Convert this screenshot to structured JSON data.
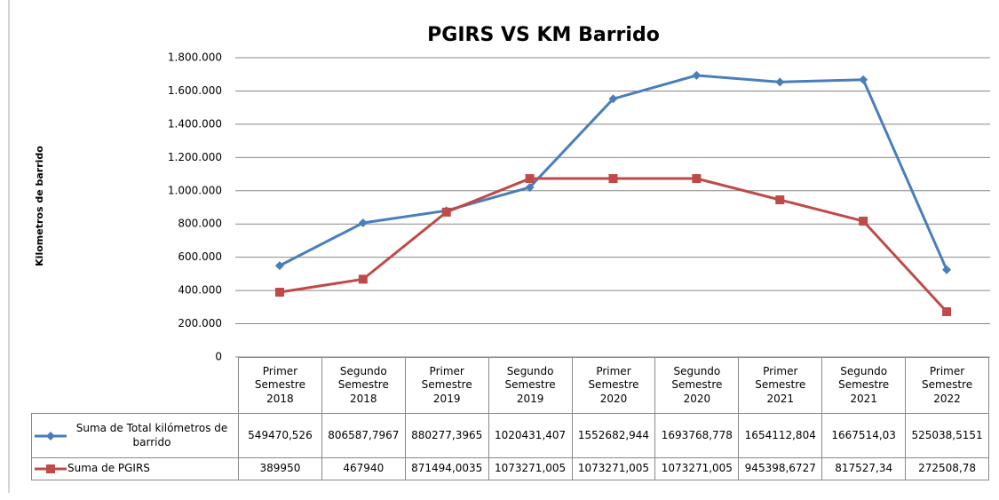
{
  "chart_data": {
    "type": "line",
    "title": "PGIRS VS KM Barrido",
    "ylabel": "Kilometros de barrido",
    "categories": [
      "Primer Semestre 2018",
      "Segundo Semestre 2018",
      "Primer Semestre 2019",
      "Segundo Semestre 2019",
      "Primer Semestre 2020",
      "Segundo Semestre 2020",
      "Primer Semestre 2021",
      "Segundo Semestre 2021",
      "Primer Semestre 2022"
    ],
    "series": [
      {
        "name": "Suma de Total kilómetros de barrido",
        "color": "#4a7ebb",
        "marker": "diamond",
        "values": [
          549470.526,
          806587.7967,
          880277.3965,
          1020431.407,
          1552682.944,
          1693768.778,
          1654112.804,
          1667514.03,
          525038.5151
        ],
        "value_labels": [
          "549470,526",
          "806587,7967",
          "880277,3965",
          "1020431,407",
          "1552682,944",
          "1693768,778",
          "1654112,804",
          "1667514,03",
          "525038,5151"
        ]
      },
      {
        "name": "Suma de PGIRS",
        "color": "#be4b48",
        "marker": "square",
        "values": [
          389950,
          467940,
          871494.0035,
          1073271.005,
          1073271.005,
          1073271.005,
          945398.6727,
          817527.34,
          272508.78
        ],
        "value_labels": [
          "389950",
          "467940",
          "871494,0035",
          "1073271,005",
          "1073271,005",
          "1073271,005",
          "945398,6727",
          "817527,34",
          "272508,78"
        ]
      }
    ],
    "ylim": [
      0,
      1800000
    ],
    "yticks": [
      0,
      {
        "value": 200000,
        "label": "200.000"
      },
      {
        "value": 400000,
        "label": "400.000"
      },
      {
        "value": 600000,
        "label": "600.000"
      },
      {
        "value": 800000,
        "label": "800.000"
      },
      {
        "value": 1000000,
        "label": "1.000.000"
      },
      {
        "value": 1200000,
        "label": "1.200.000"
      },
      {
        "value": 1400000,
        "label": "1.400.000"
      },
      {
        "value": 1600000,
        "label": "1.600.000"
      },
      {
        "value": 1800000,
        "label": "1.800.000"
      }
    ],
    "grid": true
  }
}
